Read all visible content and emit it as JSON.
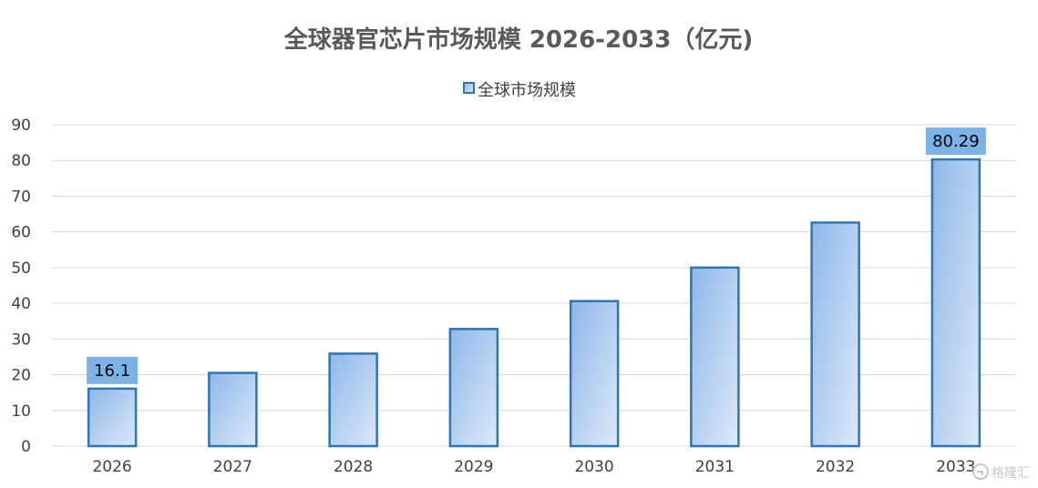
{
  "chart_data": {
    "type": "bar",
    "title": "全球器官芯片市场规模 2026-2033（亿元)",
    "xlabel": "",
    "ylabel": "",
    "categories": [
      "2026",
      "2027",
      "2028",
      "2029",
      "2030",
      "2031",
      "2032",
      "2033"
    ],
    "series": [
      {
        "name": "全球市场规模",
        "values": [
          16.1,
          20.5,
          25.9,
          32.8,
          40.6,
          50.0,
          62.6,
          80.29
        ]
      }
    ],
    "data_labels": [
      {
        "category": "2026",
        "text": "16.1"
      },
      {
        "category": "2033",
        "text": "80.29"
      }
    ],
    "ylim": [
      0,
      90
    ],
    "yticks": [
      0,
      10,
      20,
      30,
      40,
      50,
      60,
      70,
      80,
      90
    ],
    "grid": true,
    "legend_position": "top",
    "colors": {
      "bar_gradient_start": "#8db8ea",
      "bar_gradient_end": "#dde9f7",
      "bar_stroke": "#2e75b6",
      "label_box": "#7bb3e6",
      "grid": "#d9d9d9",
      "text": "#404040",
      "title": "#595959"
    }
  },
  "watermark": {
    "text": "格隆汇",
    "icon": "logo-icon"
  }
}
